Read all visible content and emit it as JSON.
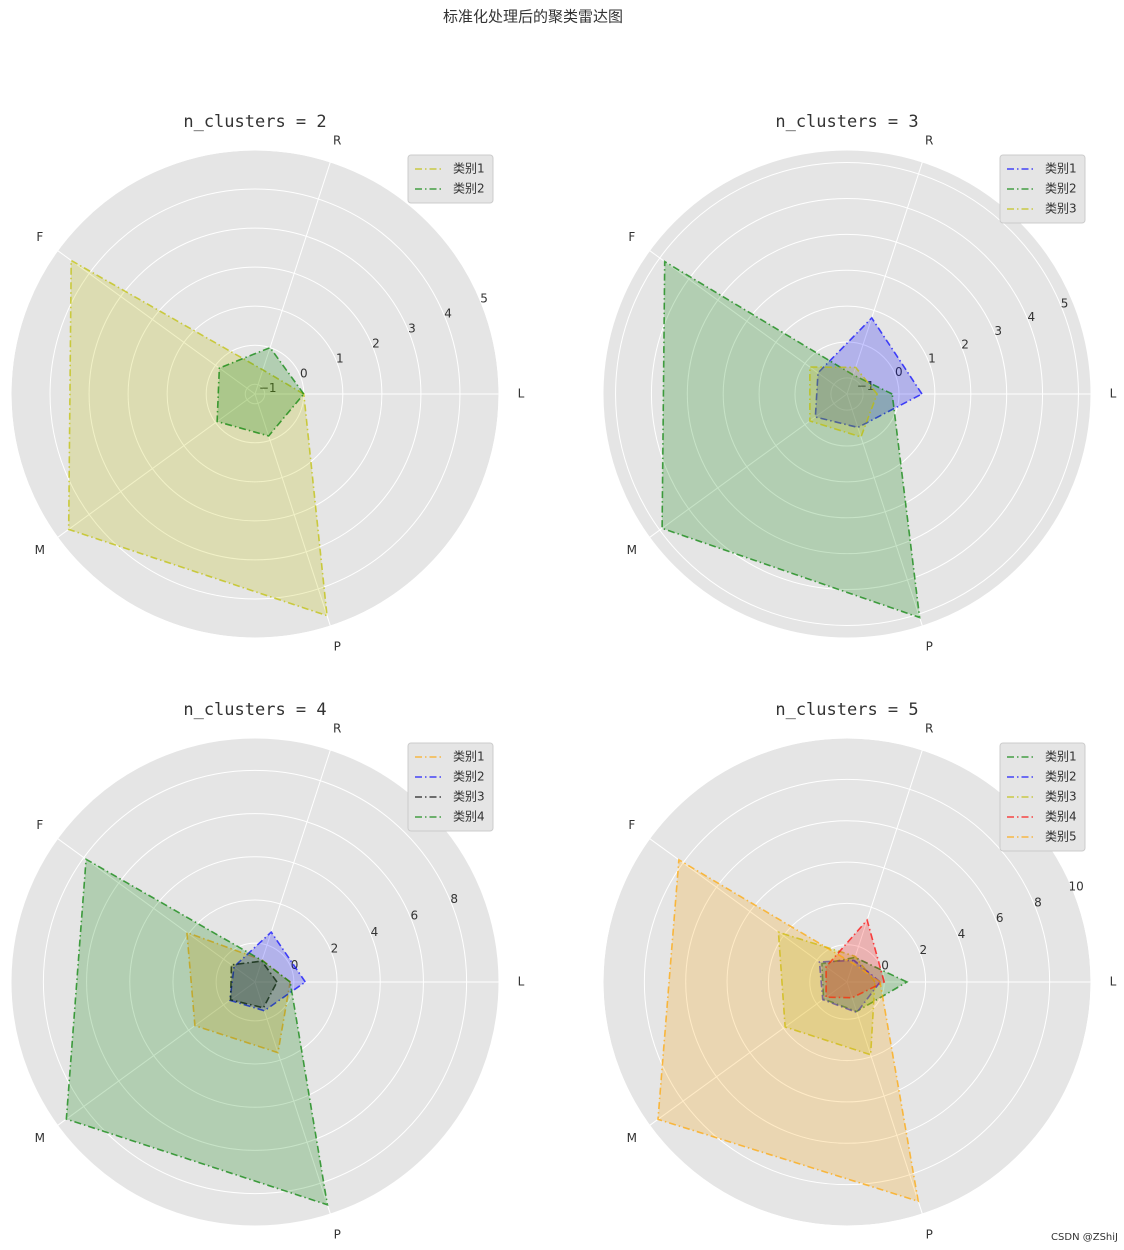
{
  "title": "标准化处理后的聚类雷达图",
  "watermark": "CSDN @ZShiJ",
  "chart_data": [
    {
      "type": "radar",
      "title": "n_clusters = 2",
      "categories": [
        "L",
        "R",
        "F",
        "M",
        "P"
      ],
      "ylim": [
        -1.25,
        5
      ],
      "yticks": [
        {
          "value": -1,
          "label": "−1"
        },
        0,
        1,
        2,
        3,
        4,
        5
      ],
      "grid": true,
      "legend": "upper right",
      "series": [
        {
          "name": "类别1",
          "color": "#bfbf00",
          "values": [
            0.0,
            -0.6,
            4.57,
            4.65,
            4.72
          ]
        },
        {
          "name": "类别2",
          "color": "#008000",
          "values": [
            0.0,
            0.0,
            -0.12,
            -0.05,
            -0.12
          ]
        }
      ]
    },
    {
      "type": "radar",
      "title": "n_clusters = 3",
      "categories": [
        "L",
        "R",
        "F",
        "M",
        "P"
      ],
      "ylim": [
        -1.45,
        5.35
      ],
      "yticks": [
        {
          "value": -1,
          "label": "−1"
        },
        0,
        1,
        2,
        3,
        4,
        5
      ],
      "grid": true,
      "legend": "upper right",
      "series": [
        {
          "name": "类别1",
          "color": "#0000ff",
          "values": [
            0.64,
            0.78,
            -0.45,
            -0.36,
            -0.47
          ]
        },
        {
          "name": "类别2",
          "color": "#008000",
          "values": [
            -0.19,
            -0.89,
            4.83,
            4.92,
            5.1
          ]
        },
        {
          "name": "类别3",
          "color": "#bfbf00",
          "values": [
            -0.61,
            -0.67,
            -0.17,
            -0.17,
            -0.19
          ]
        }
      ]
    },
    {
      "type": "radar",
      "title": "n_clusters = 4",
      "categories": [
        "L",
        "R",
        "F",
        "M",
        "P"
      ],
      "ylim": [
        -1.8,
        9.5
      ],
      "yticks": [
        0,
        2,
        4,
        6,
        8
      ],
      "grid": true,
      "legend": "upper right",
      "series": [
        {
          "name": "类别1",
          "color": "#ffa500",
          "values": [
            -0.17,
            -0.73,
            2.1,
            1.64,
            1.64
          ]
        },
        {
          "name": "类别2",
          "color": "#0000ff",
          "values": [
            0.53,
            0.63,
            -0.6,
            -0.36,
            -0.4
          ]
        },
        {
          "name": "类别3",
          "color": "#000000",
          "values": [
            -0.78,
            -0.78,
            -0.45,
            -0.4,
            -0.54
          ]
        },
        {
          "name": "类别4",
          "color": "#008000",
          "values": [
            -0.17,
            -0.75,
            7.87,
            9.0,
            9.05
          ]
        }
      ]
    },
    {
      "type": "radar",
      "title": "n_clusters = 5",
      "categories": [
        "L",
        "R",
        "F",
        "M",
        "P"
      ],
      "ylim": [
        -1.8,
        10
      ],
      "yticks": [
        0,
        2,
        4,
        6,
        8,
        10
      ],
      "grid": true,
      "legend": "upper right",
      "series": [
        {
          "name": "类别1",
          "color": "#008000",
          "values": [
            1.1,
            -0.55,
            -0.3,
            -0.4,
            -0.3
          ]
        },
        {
          "name": "类别2",
          "color": "#0000ff",
          "values": [
            -0.2,
            -0.7,
            -0.15,
            -0.35,
            -0.25
          ]
        },
        {
          "name": "类别3",
          "color": "#bfbf00",
          "values": [
            -0.45,
            -0.5,
            2.3,
            1.9,
            1.9
          ]
        },
        {
          "name": "类别4",
          "color": "#ff0000",
          "values": [
            0.0,
            1.35,
            -0.55,
            -0.55,
            -1.0
          ]
        },
        {
          "name": "类别5",
          "color": "#ffa500",
          "values": [
            -0.2,
            -0.85,
            8.25,
            9.5,
            9.35
          ]
        }
      ]
    }
  ]
}
